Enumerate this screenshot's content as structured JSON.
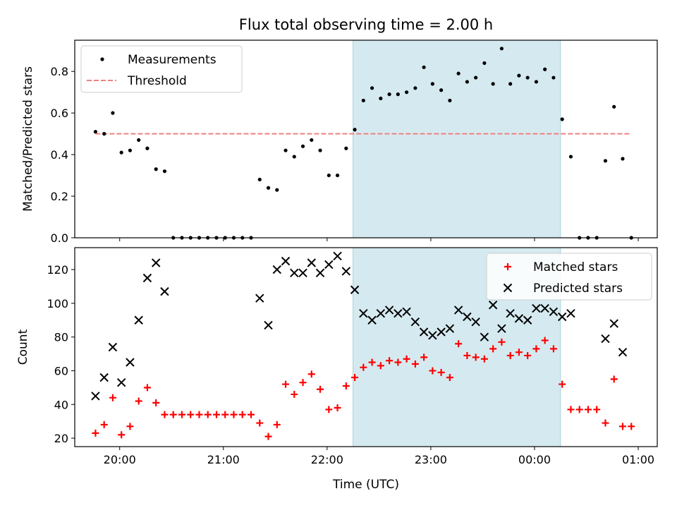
{
  "chart_data": [
    {
      "type": "scatter",
      "title": "Flux total observing time = 2.00 h",
      "xlabel": "",
      "ylabel": "Matched/Predicted stars",
      "xlim": [
        "19:34",
        "01:11"
      ],
      "ylim": [
        0,
        0.95
      ],
      "yticks": [
        0.0,
        0.2,
        0.4,
        0.6,
        0.8
      ],
      "ytick_labels": [
        "0.0",
        "0.2",
        "0.4",
        "0.6",
        "0.8"
      ],
      "highlight_span": {
        "x0": "22:15",
        "x1": "00:15",
        "color": "#d5eaf0"
      },
      "legend": {
        "position": "top-left",
        "items": [
          {
            "label": "Measurements",
            "marker": "dot",
            "color": "#000000"
          },
          {
            "label": "Threshold",
            "marker": "dashed-line",
            "color": "#f08080"
          }
        ]
      },
      "threshold": {
        "value": 0.5,
        "x0": "19:46",
        "x1": "00:56",
        "color": "#f08080"
      },
      "series": [
        {
          "name": "Measurements",
          "color": "#000000",
          "x": [
            "19:46",
            "19:51",
            "19:56",
            "20:01",
            "20:06",
            "20:11",
            "20:16",
            "20:21",
            "20:26",
            "20:31",
            "20:36",
            "20:41",
            "20:46",
            "20:51",
            "20:56",
            "21:01",
            "21:06",
            "21:11",
            "21:16",
            "21:21",
            "21:26",
            "21:31",
            "21:36",
            "21:41",
            "21:46",
            "21:51",
            "21:56",
            "22:01",
            "22:06",
            "22:11",
            "22:16",
            "22:21",
            "22:26",
            "22:31",
            "22:36",
            "22:41",
            "22:46",
            "22:51",
            "22:56",
            "23:01",
            "23:06",
            "23:11",
            "23:16",
            "23:21",
            "23:26",
            "23:31",
            "23:36",
            "23:41",
            "23:46",
            "23:51",
            "23:56",
            "00:01",
            "00:06",
            "00:11",
            "00:16",
            "00:21",
            "00:26",
            "00:31",
            "00:36",
            "00:41",
            "00:46",
            "00:51",
            "00:56"
          ],
          "y": [
            0.51,
            0.5,
            0.6,
            0.41,
            0.42,
            0.47,
            0.43,
            0.33,
            0.32,
            0.0,
            0.0,
            0.0,
            0.0,
            0.0,
            0.0,
            0.0,
            0.0,
            0.0,
            0.0,
            0.28,
            0.24,
            0.23,
            0.42,
            0.39,
            0.44,
            0.47,
            0.42,
            0.3,
            0.3,
            0.43,
            0.52,
            0.66,
            0.72,
            0.67,
            0.69,
            0.69,
            0.7,
            0.72,
            0.82,
            0.74,
            0.71,
            0.66,
            0.79,
            0.75,
            0.77,
            0.84,
            0.74,
            0.91,
            0.74,
            0.78,
            0.77,
            0.75,
            0.81,
            0.77,
            0.57,
            0.39,
            0.0,
            0.0,
            0.0,
            0.37,
            0.63,
            0.38,
            0.0
          ]
        }
      ]
    },
    {
      "type": "scatter",
      "title": "",
      "xlabel": "Time (UTC)",
      "ylabel": "Count",
      "xlim": [
        "19:34",
        "01:11"
      ],
      "ylim": [
        15,
        133
      ],
      "xtick_labels": [
        "20:00",
        "21:00",
        "22:00",
        "23:00",
        "00:00",
        "01:00"
      ],
      "yticks": [
        20,
        40,
        60,
        80,
        100,
        120
      ],
      "ytick_labels": [
        "20",
        "40",
        "60",
        "80",
        "100",
        "120"
      ],
      "highlight_span": {
        "x0": "22:15",
        "x1": "00:15",
        "color": "#d5eaf0"
      },
      "legend": {
        "position": "top-right",
        "items": [
          {
            "label": "Matched stars",
            "marker": "plus",
            "color": "#ff0000"
          },
          {
            "label": "Predicted stars",
            "marker": "x",
            "color": "#000000"
          }
        ]
      },
      "series": [
        {
          "name": "Matched stars",
          "marker": "plus",
          "color": "#ff0000",
          "x": [
            "19:46",
            "19:51",
            "19:56",
            "20:01",
            "20:06",
            "20:11",
            "20:16",
            "20:21",
            "20:26",
            "20:31",
            "20:36",
            "20:41",
            "20:46",
            "20:51",
            "20:56",
            "21:01",
            "21:06",
            "21:11",
            "21:16",
            "21:21",
            "21:26",
            "21:31",
            "21:36",
            "21:41",
            "21:46",
            "21:51",
            "21:56",
            "22:01",
            "22:06",
            "22:11",
            "22:16",
            "22:21",
            "22:26",
            "22:31",
            "22:36",
            "22:41",
            "22:46",
            "22:51",
            "22:56",
            "23:01",
            "23:06",
            "23:11",
            "23:16",
            "23:21",
            "23:26",
            "23:31",
            "23:36",
            "23:41",
            "23:46",
            "23:51",
            "23:56",
            "00:01",
            "00:06",
            "00:11",
            "00:16",
            "00:21",
            "00:26",
            "00:31",
            "00:36",
            "00:41",
            "00:46",
            "00:51",
            "00:56"
          ],
          "y": [
            23,
            28,
            44,
            22,
            27,
            42,
            50,
            41,
            34,
            34,
            34,
            34,
            34,
            34,
            34,
            34,
            34,
            34,
            34,
            29,
            21,
            28,
            52,
            46,
            53,
            58,
            49,
            37,
            38,
            51,
            56,
            62,
            65,
            63,
            66,
            65,
            67,
            64,
            68,
            60,
            59,
            56,
            76,
            69,
            68,
            67,
            73,
            77,
            69,
            71,
            69,
            73,
            78,
            73,
            52,
            37,
            37,
            37,
            37,
            29,
            55,
            27,
            27
          ]
        },
        {
          "name": "Predicted stars",
          "marker": "x",
          "color": "#000000",
          "x": [
            "19:46",
            "19:51",
            "19:56",
            "20:01",
            "20:06",
            "20:11",
            "20:16",
            "20:21",
            "20:26",
            "21:21",
            "21:26",
            "21:31",
            "21:36",
            "21:41",
            "21:46",
            "21:51",
            "21:56",
            "22:01",
            "22:06",
            "22:11",
            "22:16",
            "22:21",
            "22:26",
            "22:31",
            "22:36",
            "22:41",
            "22:46",
            "22:51",
            "22:56",
            "23:01",
            "23:06",
            "23:11",
            "23:16",
            "23:21",
            "23:26",
            "23:31",
            "23:36",
            "23:41",
            "23:46",
            "23:51",
            "23:56",
            "00:01",
            "00:06",
            "00:11",
            "00:16",
            "00:21",
            "00:41",
            "00:46",
            "00:51"
          ],
          "y": [
            45,
            56,
            74,
            53,
            65,
            90,
            115,
            124,
            107,
            103,
            87,
            120,
            125,
            118,
            118,
            124,
            118,
            123,
            128,
            119,
            108,
            94,
            90,
            94,
            96,
            94,
            95,
            89,
            83,
            81,
            83,
            85,
            96,
            92,
            89,
            80,
            99,
            85,
            94,
            91,
            90,
            97,
            97,
            95,
            92,
            94,
            79,
            88,
            71
          ]
        }
      ]
    }
  ]
}
